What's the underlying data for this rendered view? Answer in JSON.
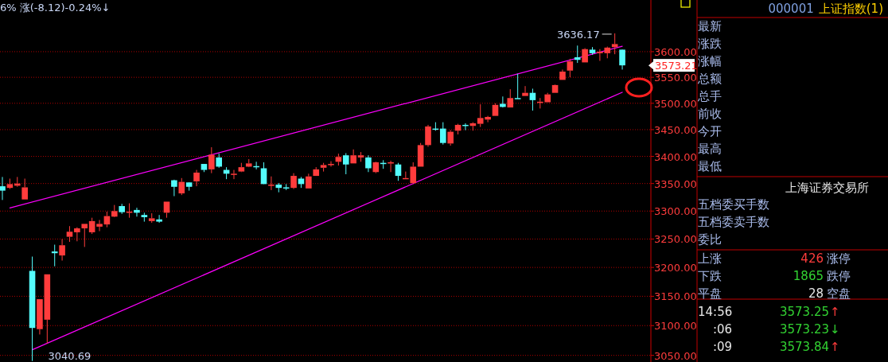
{
  "chart_data": [
    {
      "type": "candlestick",
      "title": "6% 涨(-8.12)-0.24%↓",
      "log": true,
      "grid": "y",
      "tick_labels": "y",
      "categories": [
        null,
        null,
        null,
        null,
        null,
        null,
        null,
        null,
        null,
        null,
        null,
        null,
        null,
        null,
        null,
        null,
        null,
        null,
        null,
        null,
        null,
        null,
        null,
        null,
        null,
        null,
        null,
        null,
        null,
        null,
        null,
        null,
        null,
        null,
        null,
        null,
        null,
        null,
        null,
        null,
        null,
        null,
        null,
        null,
        null,
        null,
        null,
        null,
        null,
        null,
        null,
        null,
        null,
        null,
        null,
        null,
        null,
        null,
        null,
        null,
        null,
        null,
        null,
        null,
        null,
        null,
        null,
        null,
        null,
        null,
        null,
        null,
        null,
        null,
        null,
        null,
        null,
        null,
        null,
        null,
        null,
        null,
        null,
        null
      ],
      "ohlc": [
        [
          3345,
          3362,
          3320,
          3337
        ],
        [
          3342,
          3359,
          3340,
          3349
        ],
        [
          3346,
          3362,
          3344,
          3350
        ],
        [
          3321,
          3359,
          3321,
          3343
        ],
        [
          3194,
          3219,
          3040.69,
          3096
        ],
        [
          3094,
          3145,
          3085,
          3145
        ],
        [
          3110,
          3188,
          3070,
          3188
        ],
        [
          3228,
          3240,
          3202,
          3225
        ],
        [
          3221,
          3250,
          3212,
          3239
        ],
        [
          3254,
          3273,
          3245,
          3263
        ],
        [
          3262,
          3271,
          3246,
          3269
        ],
        [
          3269,
          3277,
          3236,
          3277
        ],
        [
          3262,
          3288,
          3259,
          3282
        ],
        [
          3272,
          3284,
          3264,
          3277
        ],
        [
          3276,
          3299,
          3271,
          3291
        ],
        [
          3290,
          3311,
          3289,
          3300
        ],
        [
          3309,
          3313,
          3295,
          3298
        ],
        [
          3297,
          3314,
          3288,
          3299
        ],
        [
          3302,
          3306,
          3290,
          3297
        ],
        [
          3293,
          3297,
          3281,
          3289
        ],
        [
          3282,
          3296,
          3279,
          3287
        ],
        [
          3285,
          3293,
          3279,
          3281
        ],
        [
          3297,
          3317,
          3288,
          3317
        ],
        [
          3356,
          3357,
          3327,
          3344
        ],
        [
          3332,
          3360,
          3329,
          3353
        ],
        [
          3352,
          3352,
          3337,
          3344
        ],
        [
          3354,
          3375,
          3345,
          3370
        ],
        [
          3386,
          3386,
          3371,
          3375
        ],
        [
          3376,
          3417,
          3369,
          3403
        ],
        [
          3398,
          3405,
          3379,
          3381
        ],
        [
          3375,
          3380,
          3358,
          3368
        ],
        [
          3367,
          3375,
          3358,
          3368
        ],
        [
          3372,
          3388,
          3371,
          3380
        ],
        [
          3381,
          3395,
          3380,
          3387
        ],
        [
          3382,
          3390,
          3376,
          3381
        ],
        [
          3378,
          3389,
          3349,
          3349
        ],
        [
          3347,
          3363,
          3338,
          3348
        ],
        [
          3348,
          3351,
          3334,
          3342
        ],
        [
          3343,
          3349,
          3338,
          3341
        ],
        [
          3342,
          3369,
          3340,
          3364
        ],
        [
          3359,
          3362,
          3342,
          3349
        ],
        [
          3341,
          3368,
          3341,
          3363
        ],
        [
          3364,
          3380,
          3364,
          3376
        ],
        [
          3379,
          3388,
          3372,
          3384
        ],
        [
          3385,
          3391,
          3381,
          3386
        ],
        [
          3390,
          3405,
          3383,
          3399
        ],
        [
          3402,
          3406,
          3367,
          3385
        ],
        [
          3387,
          3413,
          3387,
          3402
        ],
        [
          3398,
          3408,
          3390,
          3402
        ],
        [
          3398,
          3402,
          3371,
          3378
        ],
        [
          3371,
          3390,
          3369,
          3389
        ],
        [
          3388,
          3393,
          3377,
          3387
        ],
        [
          3387,
          3392,
          3371,
          3389
        ],
        [
          3385,
          3388,
          3355,
          3364
        ],
        [
          3359,
          3372,
          3359,
          3360
        ],
        [
          3351,
          3389,
          3349,
          3381
        ],
        [
          3381,
          3425,
          3381,
          3421
        ],
        [
          3421,
          3459,
          3418,
          3456
        ],
        [
          3452,
          3464,
          3448,
          3450
        ],
        [
          3452,
          3464,
          3422,
          3425
        ],
        [
          3424,
          3449,
          3420,
          3446
        ],
        [
          3448,
          3461,
          3441,
          3459
        ],
        [
          3459,
          3462,
          3449,
          3457
        ],
        [
          3457,
          3464,
          3448,
          3462
        ],
        [
          3461,
          3498,
          3455,
          3472
        ],
        [
          3469,
          3476,
          3464,
          3474
        ],
        [
          3476,
          3500,
          3476,
          3497
        ],
        [
          3499,
          3513,
          3492,
          3493
        ],
        [
          3492,
          3527,
          3492,
          3510
        ],
        [
          3510,
          3557,
          3509,
          3509
        ],
        [
          3514,
          3533,
          3514,
          3520
        ],
        [
          3520,
          3528,
          3486,
          3506
        ],
        [
          3502,
          3510,
          3490,
          3503
        ],
        [
          3502,
          3520,
          3502,
          3517
        ],
        [
          3520,
          3536,
          3520,
          3535
        ],
        [
          3545,
          3565,
          3545,
          3561
        ],
        [
          3563,
          3586,
          3550,
          3581
        ],
        [
          3589,
          3612,
          3578,
          3584
        ],
        [
          3579,
          3607,
          3579,
          3605
        ],
        [
          3604,
          3609,
          3594,
          3597
        ],
        [
          3597,
          3605,
          3582,
          3600
        ],
        [
          3597,
          3610,
          3587,
          3608
        ],
        [
          3609,
          3636.17,
          3595,
          3615
        ],
        [
          3604,
          3604,
          3565,
          3573.21
        ]
      ],
      "colors": [
        "#54fcfc",
        "#ff3c3c",
        "#ff3c3c",
        "#ff3c3c",
        "#54fcfc",
        "#ff3c3c",
        "#ff3c3c",
        "#54fcfc",
        "#ff3c3c",
        "#ff3c3c",
        "#ff3c3c",
        "#ff3c3c",
        "#ff3c3c",
        "#ff3c3c",
        "#ff3c3c",
        "#ff3c3c",
        "#54fcfc",
        "#ff3c3c",
        "#54fcfc",
        "#54fcfc",
        "#ff3c3c",
        "#54fcfc",
        "#ff3c3c",
        "#54fcfc",
        "#ff3c3c",
        "#54fcfc",
        "#ff3c3c",
        "#54fcfc",
        "#ff3c3c",
        "#54fcfc",
        "#54fcfc",
        "#ff3c3c",
        "#ff3c3c",
        "#ff3c3c",
        "#54fcfc",
        "#54fcfc",
        "#ff3c3c",
        "#54fcfc",
        "#54fcfc",
        "#ff3c3c",
        "#54fcfc",
        "#ff3c3c",
        "#ff3c3c",
        "#ff3c3c",
        "#ff3c3c",
        "#ff3c3c",
        "#54fcfc",
        "#ff3c3c",
        "#ff3c3c",
        "#54fcfc",
        "#ff3c3c",
        "#54fcfc",
        "#ff3c3c",
        "#54fcfc",
        "#ff3c3c",
        "#ff3c3c",
        "#ff3c3c",
        "#ff3c3c",
        "#54fcfc",
        "#54fcfc",
        "#ff3c3c",
        "#ff3c3c",
        "#54fcfc",
        "#ff3c3c",
        "#ff3c3c",
        "#ff3c3c",
        "#ff3c3c",
        "#54fcfc",
        "#ff3c3c",
        "#54fcfc",
        "#ff3c3c",
        "#54fcfc",
        "#ff3c3c",
        "#ff3c3c",
        "#ff3c3c",
        "#ff3c3c",
        "#ff3c3c",
        "#54fcfc",
        "#ff3c3c",
        "#54fcfc",
        "#ff3c3c",
        "#ff3c3c",
        "#ff3c3c",
        "#54fcfc"
      ],
      "series": [
        {
          "type": "line",
          "color": "#ff00ff",
          "values": [
            null,
            3305.7,
            null,
            null,
            null,
            null,
            null,
            null,
            null,
            null,
            null,
            null,
            null,
            null,
            null,
            null,
            null,
            null,
            null,
            null,
            null,
            null,
            null,
            null,
            null,
            null,
            null,
            null,
            null,
            null,
            null,
            null,
            null,
            null,
            null,
            null,
            null,
            null,
            null,
            null,
            null,
            null,
            null,
            null,
            null,
            null,
            null,
            null,
            null,
            null,
            null,
            null,
            null,
            null,
            null,
            null,
            null,
            null,
            null,
            null,
            null,
            null,
            null,
            null,
            null,
            null,
            null,
            null,
            null,
            null,
            null,
            null,
            null,
            null,
            null,
            null,
            null,
            null,
            null,
            null,
            null,
            null,
            null,
            3610.6
          ]
        },
        {
          "type": "line",
          "color": "#ff00ff",
          "values": [
            null,
            null,
            null,
            null,
            3059.3,
            null,
            null,
            null,
            null,
            null,
            null,
            null,
            null,
            null,
            null,
            null,
            null,
            null,
            null,
            null,
            null,
            null,
            null,
            null,
            null,
            null,
            null,
            null,
            null,
            null,
            null,
            null,
            null,
            null,
            null,
            null,
            null,
            null,
            null,
            null,
            null,
            null,
            null,
            null,
            null,
            null,
            null,
            null,
            null,
            null,
            null,
            null,
            null,
            null,
            null,
            null,
            null,
            null,
            null,
            null,
            null,
            null,
            null,
            null,
            null,
            null,
            null,
            null,
            null,
            null,
            null,
            null,
            null,
            null,
            null,
            null,
            null,
            null,
            null,
            null,
            null,
            null,
            null,
            3521.1
          ]
        }
      ],
      "ylim": [
        3039,
        3703
      ],
      "yticks": [
        {
          "value": 3050,
          "label": "3050.00"
        },
        {
          "value": 3100,
          "label": "3100.00"
        },
        {
          "value": 3150,
          "label": "3150.00"
        },
        {
          "value": 3200,
          "label": "3200.00"
        },
        {
          "value": 3250,
          "label": "3250.00"
        },
        {
          "value": 3300,
          "label": "3300.00"
        },
        {
          "value": 3350,
          "label": "3350.00"
        },
        {
          "value": 3400,
          "label": "3400.00"
        },
        {
          "value": 3450,
          "label": "3450.00"
        },
        {
          "value": 3500,
          "label": "3500.00"
        },
        {
          "value": 3550,
          "label": "3550.00"
        },
        {
          "value": 3600,
          "label": "3600.00"
        }
      ],
      "annotations": [
        "3636.17",
        "3040.69",
        "3573.21"
      ]
    },
    {
      "type": "other",
      "title": "上证指数(1)",
      "annotations": [
        "000001",
        "最新",
        "涨跌",
        "涨幅",
        "总额",
        "总手",
        "前收",
        "今开",
        "最高",
        "最低",
        "上海证券交易所",
        "五档委买手数",
        "五档委卖手数",
        "委比",
        "上涨",
        "426",
        "涨停",
        "下跌",
        "1865",
        "跌停",
        "平盘",
        "28",
        "空盘",
        "14:56",
        "3573.25",
        "↑",
        ":06",
        "3573.23",
        "↓",
        ":09",
        "3573.84",
        "↑"
      ]
    }
  ]
}
